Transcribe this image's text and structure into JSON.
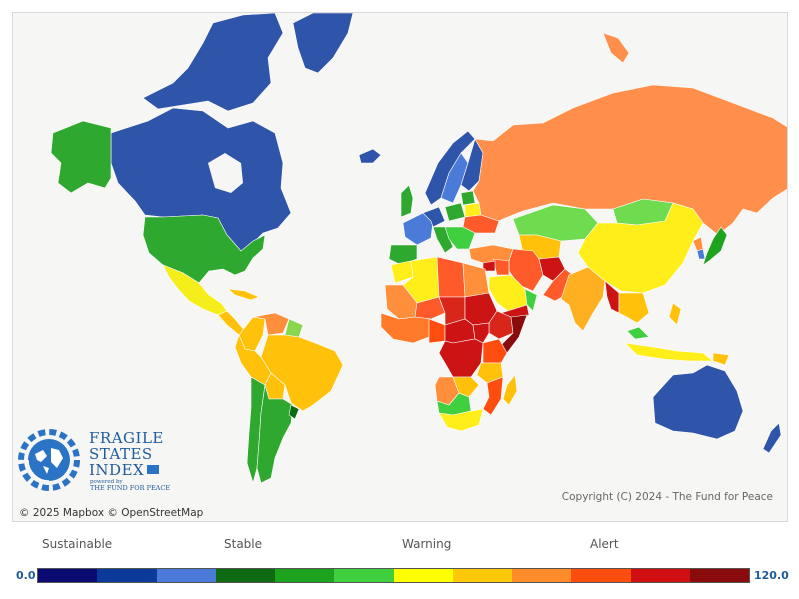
{
  "copyright": "Copyright (C) 2024 - The Fund for Peace",
  "attribution": "© 2025 Mapbox © OpenStreetMap",
  "logo": {
    "line1": "FRAGILE",
    "line2": "STATES",
    "line3": "INDEX",
    "powered_by": "powered by",
    "organization": "THE FUND FOR PEACE"
  },
  "legend": {
    "categories": [
      "Sustainable",
      "Stable",
      "Warning",
      "Alert"
    ],
    "min_label": "0.0",
    "max_label": "120.0",
    "colors": [
      "#0a0a70",
      "#0c3a9a",
      "#4a7bd8",
      "#0e6b14",
      "#1ea31e",
      "#3fcf3f",
      "#ffff00",
      "#ffc90a",
      "#ff8c2a",
      "#ff4d10",
      "#d01010",
      "#8a0b0b"
    ]
  },
  "colors": {
    "ocean": "#f6f6f4",
    "border": "#ffffff"
  }
}
